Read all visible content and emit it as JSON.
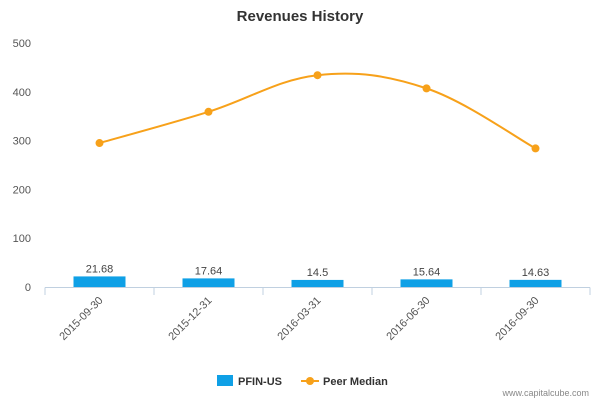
{
  "chart_data": {
    "type": "bar",
    "title": "Revenues History",
    "categories": [
      "2015-09-30",
      "2015-12-31",
      "2016-03-31",
      "2016-06-30",
      "2016-09-30"
    ],
    "series": [
      {
        "name": "PFIN-US",
        "type": "bar",
        "color": "#0fa0e6",
        "values": [
          21.68,
          17.64,
          14.5,
          15.64,
          14.63
        ],
        "value_labels": [
          "21.68",
          "17.64",
          "14.5",
          "15.64",
          "14.63"
        ]
      },
      {
        "name": "Peer Median",
        "type": "line",
        "color": "#f7a11a",
        "values": [
          295,
          359,
          434,
          407,
          284
        ]
      }
    ],
    "y_ticks": [
      "0",
      "100",
      "200",
      "300",
      "400",
      "500"
    ],
    "ylim": [
      0,
      500
    ],
    "grid": false,
    "legend_position": "bottom-center"
  },
  "credit": "www.capitalcube.com"
}
